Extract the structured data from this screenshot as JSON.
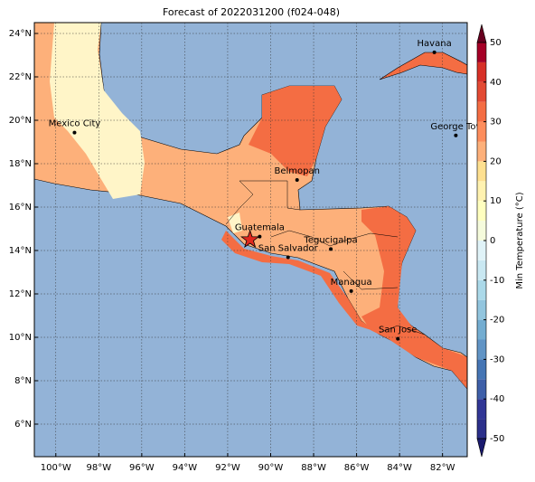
{
  "map": {
    "title": "Forecast of 2022031200 (f024-048)",
    "xlim": [
      -101,
      -80.85
    ],
    "ylim": [
      4.5,
      24.5
    ],
    "grid": true,
    "xticks": [
      {
        "value": -100,
        "label": "100°W"
      },
      {
        "value": -98,
        "label": "98°W"
      },
      {
        "value": -96,
        "label": "96°W"
      },
      {
        "value": -94,
        "label": "94°W"
      },
      {
        "value": -92,
        "label": "92°W"
      },
      {
        "value": -90,
        "label": "90°W"
      },
      {
        "value": -88,
        "label": "88°W"
      },
      {
        "value": -86,
        "label": "86°W"
      },
      {
        "value": -84,
        "label": "84°W"
      },
      {
        "value": -82,
        "label": "82°W"
      }
    ],
    "yticks": [
      {
        "value": 6,
        "label": "6°N"
      },
      {
        "value": 8,
        "label": "8°N"
      },
      {
        "value": 10,
        "label": "10°N"
      },
      {
        "value": 12,
        "label": "12°N"
      },
      {
        "value": 14,
        "label": "14°N"
      },
      {
        "value": 16,
        "label": "16°N"
      },
      {
        "value": 18,
        "label": "18°N"
      },
      {
        "value": 20,
        "label": "20°N"
      },
      {
        "value": 22,
        "label": "22°N"
      },
      {
        "value": 24,
        "label": "24°N"
      }
    ],
    "cities": [
      {
        "name": "Havana",
        "lon": -82.38,
        "lat": 23.13
      },
      {
        "name": "Mexico City",
        "lon": -99.13,
        "lat": 19.43
      },
      {
        "name": "George Tov",
        "lon": -81.38,
        "lat": 19.3
      },
      {
        "name": "Belmopan",
        "lon": -88.77,
        "lat": 17.25
      },
      {
        "name": "Guatemala",
        "lon": -90.51,
        "lat": 14.64
      },
      {
        "name": "San Salvador",
        "lon": -89.19,
        "lat": 13.69
      },
      {
        "name": "Tegucigalpa",
        "lon": -87.2,
        "lat": 14.07
      },
      {
        "name": "Managua",
        "lon": -86.25,
        "lat": 12.13
      },
      {
        "name": "San Jose",
        "lon": -84.08,
        "lat": 9.93
      }
    ],
    "star": {
      "lon": -90.96,
      "lat": 14.5
    },
    "colorbar": {
      "label": "Min Temperature (°C)",
      "lim": [
        -50,
        50
      ],
      "ticks": [
        -50,
        -40,
        -30,
        -20,
        -10,
        0,
        10,
        20,
        30,
        40,
        50
      ],
      "levels": [
        -50,
        -45,
        -40,
        -35,
        -30,
        -25,
        -20,
        -15,
        -10,
        -5,
        0,
        5,
        10,
        15,
        20,
        25,
        30,
        35,
        40,
        45,
        50
      ],
      "colors": [
        "#2b2f8a",
        "#313695",
        "#3e5fa8",
        "#4575b4",
        "#6194c5",
        "#74add1",
        "#92c5de",
        "#abd9e9",
        "#c9e8f2",
        "#e0f3f8",
        "#f5fbdc",
        "#ffffbf",
        "#fff2b0",
        "#fee090",
        "#fdb07a",
        "#fd8d5c",
        "#f46d43",
        "#e34a33",
        "#d73027",
        "#a50026"
      ]
    }
  }
}
